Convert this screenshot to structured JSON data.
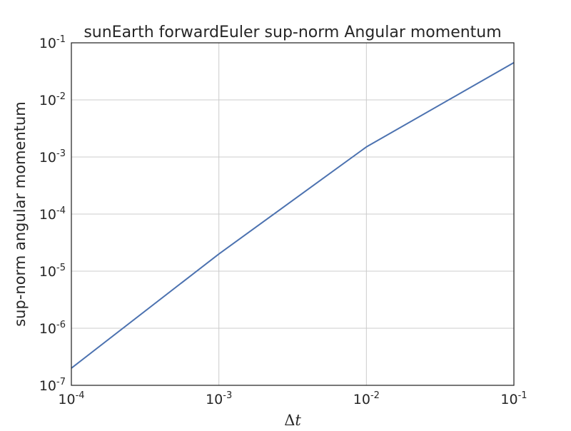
{
  "chart_data": {
    "type": "line",
    "title": "sunEarth forwardEuler sup-norm Angular momentum",
    "xlabel_prefix": "Δ",
    "xlabel_var": "t",
    "ylabel": "sup-norm angular momentum",
    "xscale": "log",
    "yscale": "log",
    "xlim": [
      0.0001,
      0.1
    ],
    "ylim": [
      1e-07,
      0.1
    ],
    "x_ticks": [
      {
        "base": "10",
        "exp": "-4"
      },
      {
        "base": "10",
        "exp": "-3"
      },
      {
        "base": "10",
        "exp": "-2"
      },
      {
        "base": "10",
        "exp": "-1"
      }
    ],
    "y_ticks": [
      {
        "base": "10",
        "exp": "-7"
      },
      {
        "base": "10",
        "exp": "-6"
      },
      {
        "base": "10",
        "exp": "-5"
      },
      {
        "base": "10",
        "exp": "-4"
      },
      {
        "base": "10",
        "exp": "-3"
      },
      {
        "base": "10",
        "exp": "-2"
      },
      {
        "base": "10",
        "exp": "-1"
      }
    ],
    "grid": true,
    "series": [
      {
        "color": "#4c72b0",
        "x": [
          0.0001,
          0.001,
          0.01,
          0.1
        ],
        "y": [
          2e-07,
          2e-05,
          0.0015,
          0.045
        ]
      }
    ]
  }
}
